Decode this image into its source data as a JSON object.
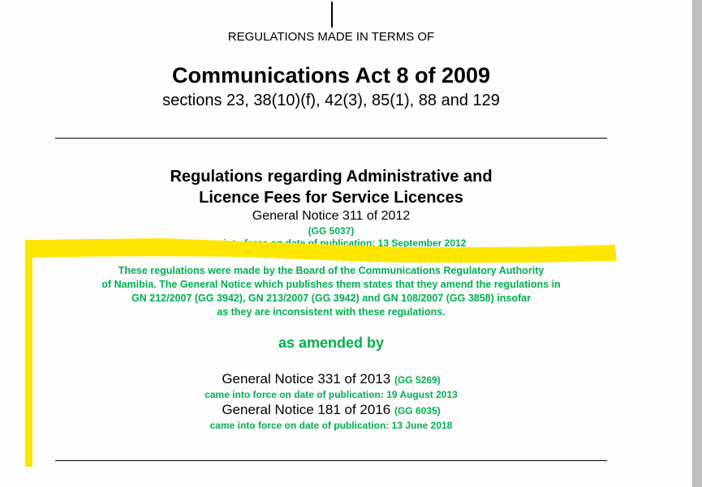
{
  "header": {
    "made_in_terms_of": "REGULATIONS MADE IN TERMS OF",
    "act_title": "Communications Act 8 of 2009",
    "sections": "sections 23, 38(10)(f), 42(3), 85(1), 88 and 129"
  },
  "regulation": {
    "title_line1": "Regulations regarding Administrative and",
    "title_line2": "Licence Fees for Service Licences",
    "notice": "General Notice 311 of 2012",
    "gazette": "(GG 5037)",
    "in_force": "came into force on date of publication: 13 September 2012",
    "note_lines": [
      "These regulations were made by the Board of the Communications Regulatory Authority",
      "of Namibia. The General Notice which publishes them states that they amend the regulations in",
      "GN 212/2007 (GG 3942), GN 213/2007 (GG 3942) and GN 108/2007 (GG 3858) insofar",
      "as they are inconsistent with these regulations."
    ]
  },
  "amendments": {
    "heading": "as amended by",
    "items": [
      {
        "notice": "General Notice 331 of 2013",
        "gazette": "(GG 5269)",
        "in_force": "came into force on date of publication: 19 August 2013"
      },
      {
        "notice": "General Notice 181 of 2016",
        "gazette": "(GG 6035)",
        "in_force": "came into force on date of publication: 13 June 2018"
      }
    ]
  },
  "colors": {
    "green_text": "#00b050",
    "highlight": "#ffe600",
    "scrollbar": "#bdbdbd"
  }
}
